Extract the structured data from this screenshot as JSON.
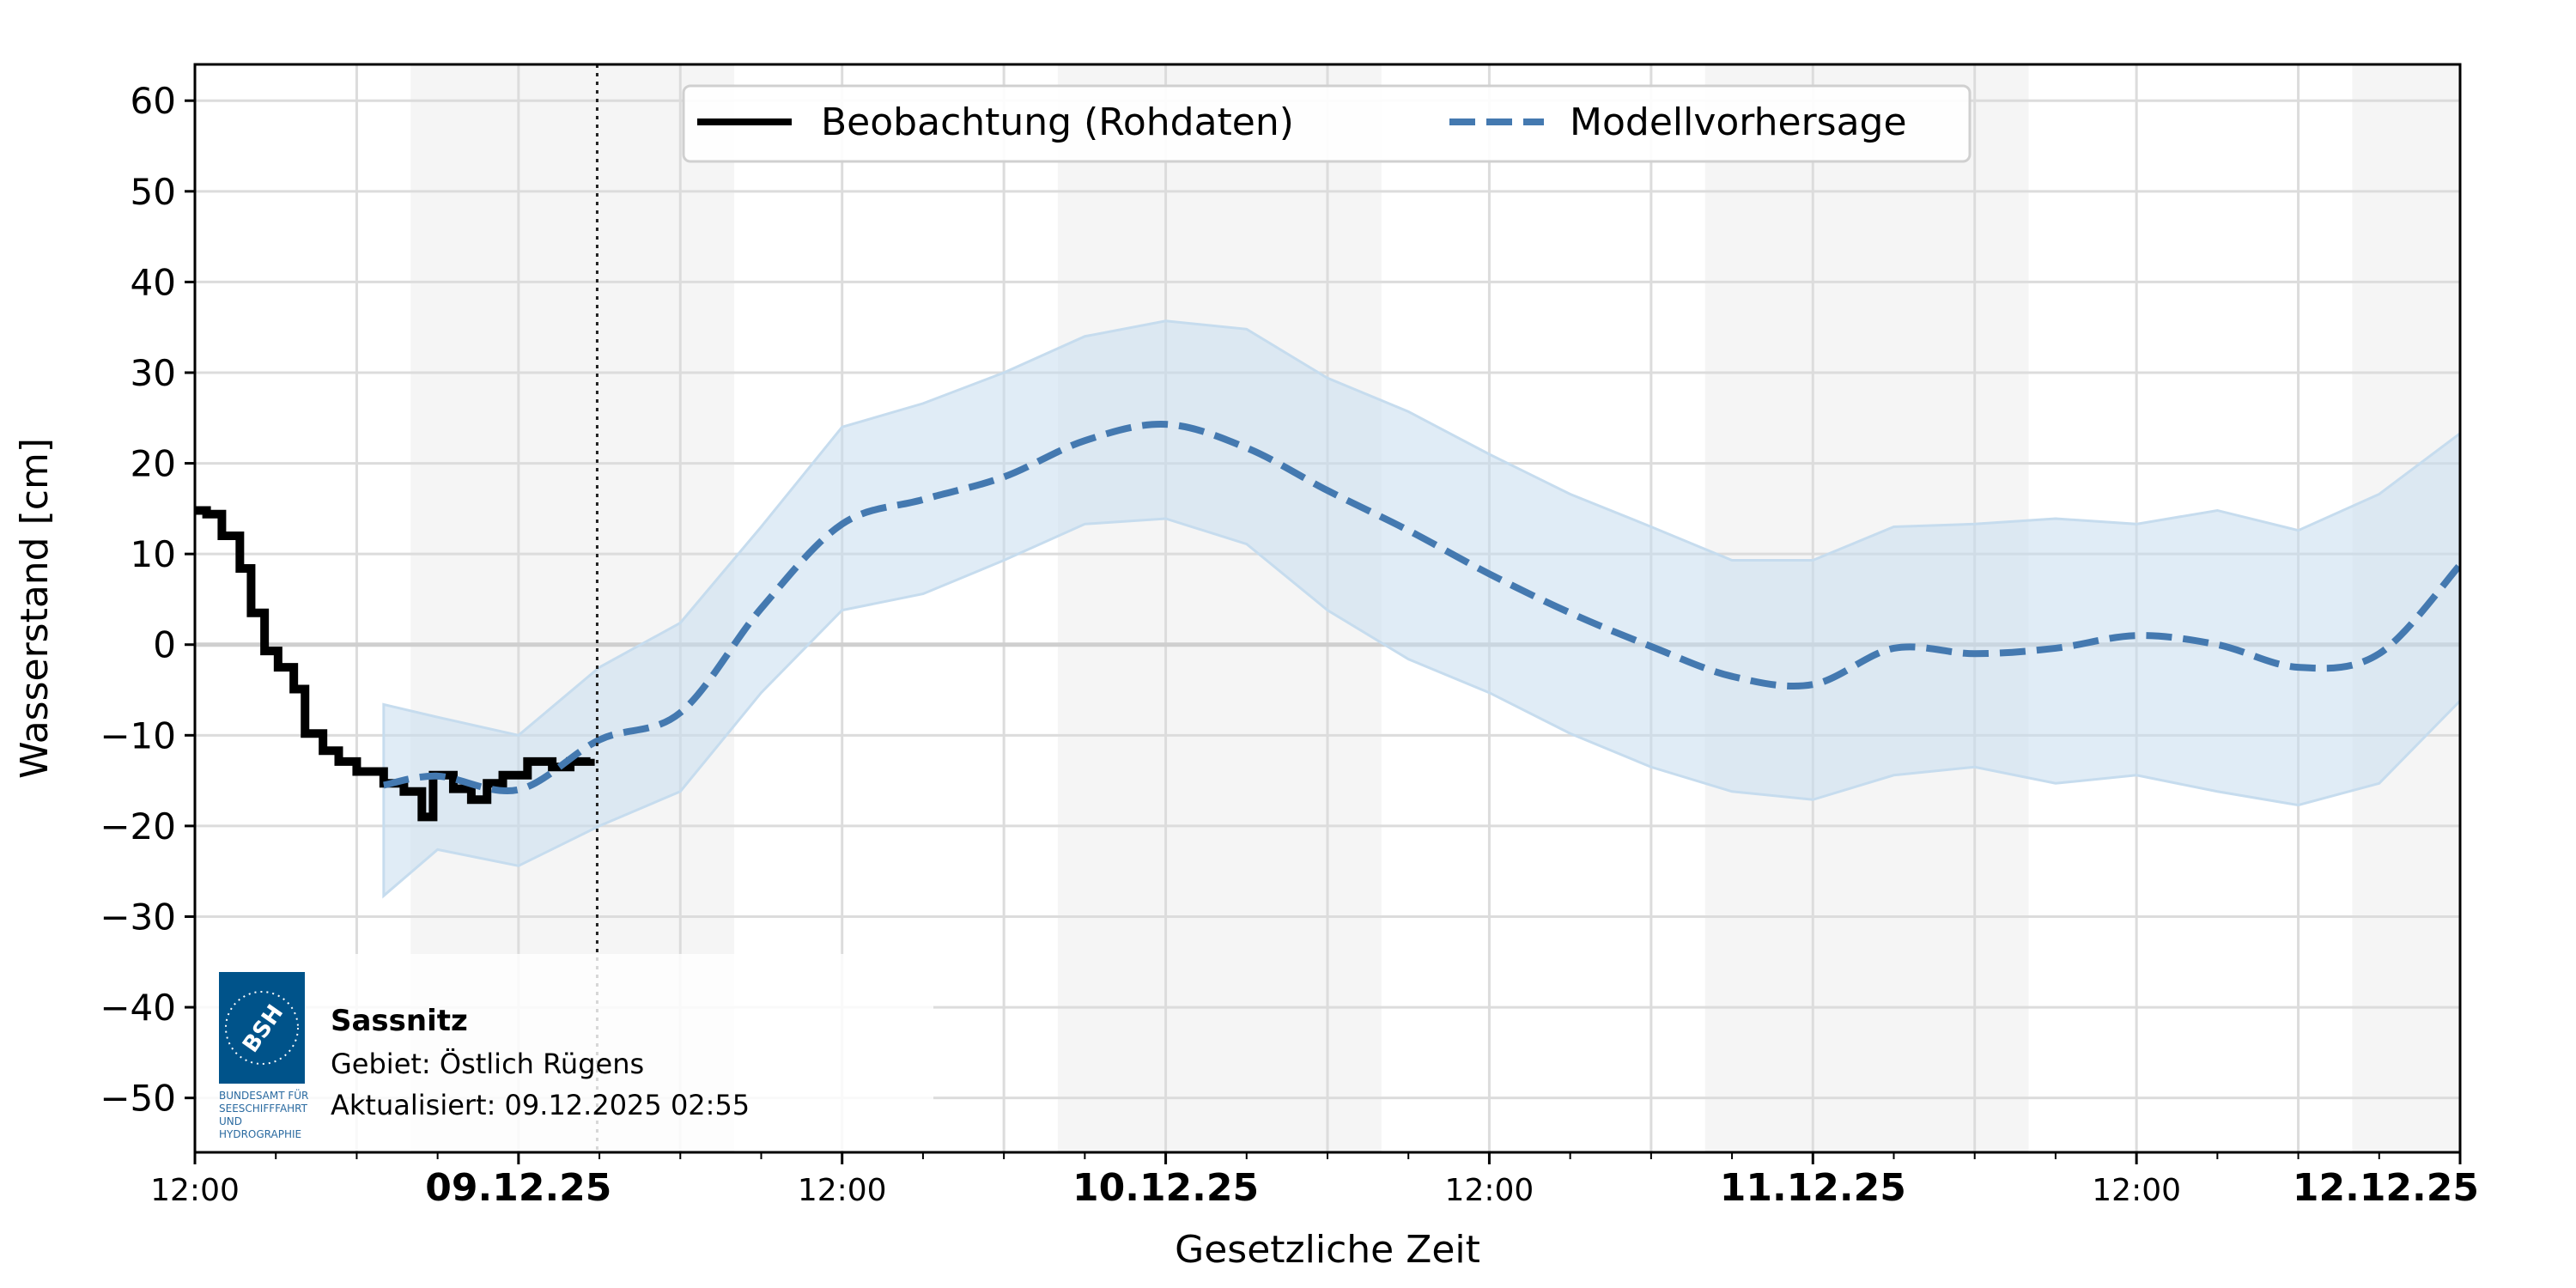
{
  "chart_data": {
    "type": "line",
    "title": "",
    "xlabel": "Gesetzliche Zeit",
    "ylabel": "Wasserstand [cm]",
    "xlim": [
      "2025-12-08T12:00",
      "2025-12-12T00:00"
    ],
    "ylim": [
      -56,
      64
    ],
    "yticks": [
      -50,
      -40,
      -30,
      -20,
      -10,
      0,
      10,
      20,
      30,
      40,
      50,
      60
    ],
    "ytick_labels": [
      "−50",
      "−40",
      "−30",
      "−20",
      "−10",
      "0",
      "10",
      "20",
      "30",
      "40",
      "50",
      "60"
    ],
    "xticks": [
      {
        "t": "2025-12-08T12:00",
        "label": "12:00",
        "bold": false
      },
      {
        "t": "2025-12-09T00:00",
        "label": "09.12.25",
        "bold": true
      },
      {
        "t": "2025-12-09T12:00",
        "label": "12:00",
        "bold": false
      },
      {
        "t": "2025-12-10T00:00",
        "label": "10.12.25",
        "bold": true
      },
      {
        "t": "2025-12-10T12:00",
        "label": "12:00",
        "bold": false
      },
      {
        "t": "2025-12-11T00:00",
        "label": "11.12.25",
        "bold": true
      },
      {
        "t": "2025-12-11T12:00",
        "label": "12:00",
        "bold": false
      },
      {
        "t": "2025-12-12T00:00",
        "label": "12.12.25",
        "bold": true
      }
    ],
    "grid": true,
    "night_bands": [
      [
        "2025-12-08T20:00",
        "2025-12-09T08:00"
      ],
      [
        "2025-12-09T20:00",
        "2025-12-10T08:00"
      ],
      [
        "2025-12-10T20:00",
        "2025-12-11T08:00"
      ],
      [
        "2025-12-11T20:00",
        "2025-12-12T00:00"
      ]
    ],
    "update_marker": "2025-12-09T02:55",
    "legend_placement": "top-center",
    "colors": {
      "observation": "#000000",
      "forecast": "#4479b0",
      "band": "#c6dcee",
      "night": "#f5f5f5"
    },
    "series": [
      {
        "name": "Beobachtung (Rohdaten)",
        "style": "solid-step",
        "x": [
          "2025-12-08T12:00",
          "2025-12-08T12:26",
          "2025-12-08T13:00",
          "2025-12-08T13:40",
          "2025-12-08T14:05",
          "2025-12-08T14:35",
          "2025-12-08T15:05",
          "2025-12-08T15:40",
          "2025-12-08T16:05",
          "2025-12-08T16:45",
          "2025-12-08T17:20",
          "2025-12-08T18:00",
          "2025-12-08T19:00",
          "2025-12-08T19:45",
          "2025-12-08T20:25",
          "2025-12-08T20:50",
          "2025-12-08T21:35",
          "2025-12-08T22:15",
          "2025-12-08T22:50",
          "2025-12-08T23:25",
          "2025-12-09T00:20",
          "2025-12-09T01:15",
          "2025-12-09T01:55",
          "2025-12-09T02:40"
        ],
        "y": [
          14.8,
          14.4,
          12,
          8.4,
          3.5,
          -0.7,
          -2.5,
          -4.9,
          -9.8,
          -11.7,
          -12.9,
          -14,
          -15.3,
          -16.2,
          -19,
          -14.4,
          -15.9,
          -17.1,
          -15.3,
          -14.4,
          -12.9,
          -13.5,
          -12.9,
          -12.6
        ]
      },
      {
        "name": "Modellvorhersage",
        "style": "dashed",
        "x": [
          "2025-12-08T19:00",
          "2025-12-08T21:00",
          "2025-12-09T00:00",
          "2025-12-09T03:00",
          "2025-12-09T06:00",
          "2025-12-09T09:00",
          "2025-12-09T12:00",
          "2025-12-09T15:00",
          "2025-12-09T18:00",
          "2025-12-09T21:00",
          "2025-12-10T00:00",
          "2025-12-10T03:00",
          "2025-12-10T06:00",
          "2025-12-10T09:00",
          "2025-12-10T12:00",
          "2025-12-10T15:00",
          "2025-12-10T18:00",
          "2025-12-10T21:00",
          "2025-12-11T00:00",
          "2025-12-11T03:00",
          "2025-12-11T06:00",
          "2025-12-11T09:00",
          "2025-12-11T12:00",
          "2025-12-11T15:00",
          "2025-12-11T18:00",
          "2025-12-11T21:00",
          "2025-12-12T00:00"
        ],
        "y": [
          -15.5,
          -14.5,
          -16,
          -10.5,
          -7.5,
          4,
          13.3,
          16,
          18.5,
          22.5,
          24.3,
          21.7,
          17,
          12.6,
          7.8,
          3.5,
          -0.2,
          -3.5,
          -4.4,
          -0.4,
          -1,
          -0.4,
          1,
          0,
          -2.5,
          -1,
          8.8
        ],
        "upper": [
          -6.6,
          -8,
          -10,
          -2.5,
          2.4,
          13,
          24,
          26.6,
          30,
          34,
          35.7,
          34.8,
          29.4,
          25.7,
          21,
          16.6,
          13,
          9.3,
          9.3,
          13,
          13.3,
          13.9,
          13.3,
          14.8,
          12.6,
          16.6,
          23.3
        ],
        "lower": [
          -27.7,
          -22.6,
          -24.4,
          -20,
          -16.2,
          -5.3,
          3.8,
          5.6,
          9.3,
          13.3,
          13.9,
          11.1,
          3.8,
          -1.6,
          -5.3,
          -9.8,
          -13.5,
          -16.2,
          -17.1,
          -14.4,
          -13.5,
          -15.3,
          -14.4,
          -16.2,
          -17.7,
          -15.3,
          -6.2
        ]
      }
    ]
  },
  "info_box": {
    "station": "Sassnitz",
    "area": "Gebiet: Östlich Rügens",
    "updated": "Aktualisiert: 09.12.2025 02:55",
    "logo_text": "BSH",
    "logo_caption": [
      "BUNDESAMT FÜR",
      "SEESCHIFFFAHRT",
      "UND",
      "HYDROGRAPHIE"
    ]
  }
}
